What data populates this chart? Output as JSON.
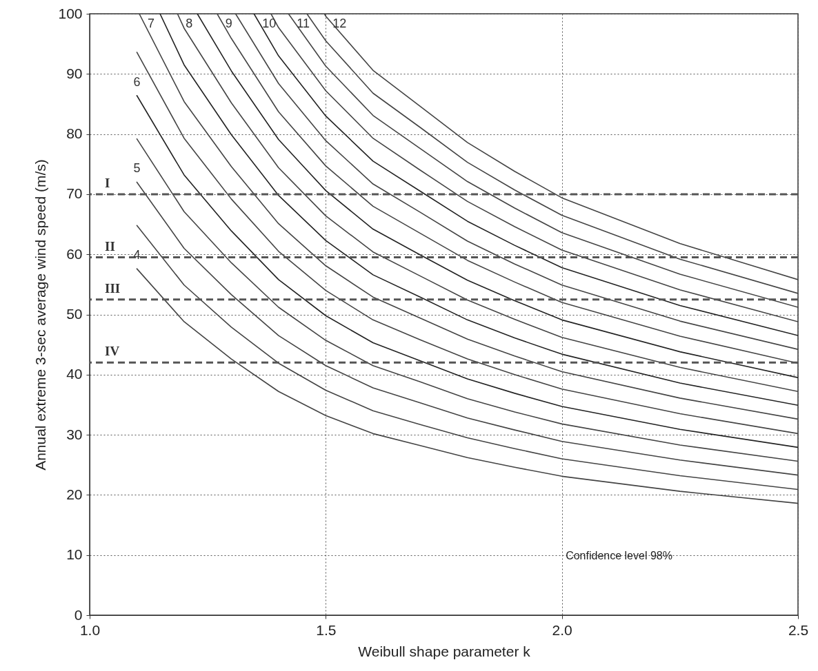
{
  "chart_data": {
    "type": "line",
    "xlabel": "Weibull shape parameter k",
    "ylabel": "Annual extreme 3-sec average wind speed  (m/s)",
    "x": [
      1.1,
      1.2,
      1.3,
      1.4,
      1.5,
      1.6,
      1.7,
      1.8,
      1.9,
      2.0,
      2.25,
      2.5
    ],
    "series": [
      {
        "name": "4",
        "color": "#444444",
        "values": [
          57.6,
          48.8,
          42.6,
          37.2,
          33.2,
          30.2,
          28.2,
          26.2,
          24.6,
          23.1,
          20.6,
          18.6
        ]
      },
      {
        "color": "#444444",
        "values": [
          64.8,
          54.9,
          47.9,
          41.9,
          37.4,
          34.0,
          31.7,
          29.5,
          27.7,
          26.0,
          23.2,
          20.9
        ]
      },
      {
        "name": "5",
        "color": "#444444",
        "values": [
          72,
          61,
          53.3,
          46.5,
          41.5,
          37.8,
          35.3,
          32.8,
          30.8,
          28.9,
          25.8,
          23.3
        ]
      },
      {
        "color": "#444444",
        "values": [
          79.2,
          67.1,
          58.6,
          51.2,
          45.7,
          41.5,
          38.8,
          36.0,
          33.8,
          31.8,
          28.3,
          25.6
        ]
      },
      {
        "name": "6",
        "color": "#222222",
        "values": [
          86.4,
          73.2,
          63.9,
          55.8,
          49.8,
          45.3,
          42.3,
          39.3,
          36.9,
          34.7,
          30.9,
          27.9
        ]
      },
      {
        "color": "#444444",
        "values": [
          93.6,
          79.3,
          69.2,
          60.5,
          54.0,
          49.1,
          45.8,
          42.6,
          40.0,
          37.6,
          33.5,
          30.2
        ]
      },
      {
        "name": "7",
        "color": "#444444",
        "x": [
          1.105,
          1.2,
          1.3,
          1.4,
          1.5,
          1.6,
          1.7,
          1.8,
          1.9,
          2.0,
          2.25,
          2.5
        ],
        "values": [
          100,
          85.4,
          74.6,
          65.1,
          58.1,
          52.9,
          49.4,
          45.9,
          43.1,
          40.5,
          36.1,
          32.6
        ]
      },
      {
        "color": "#222222",
        "x": [
          1.149,
          1.2,
          1.3,
          1.4,
          1.5,
          1.6,
          1.7,
          1.8,
          1.9,
          2.0,
          2.25,
          2.5
        ],
        "values": [
          100,
          91.5,
          79.9,
          69.8,
          62.3,
          56.6,
          52.9,
          49.1,
          46.1,
          43.4,
          38.6,
          34.9
        ]
      },
      {
        "name": "8",
        "color": "#444444",
        "x": [
          1.186,
          1.2,
          1.3,
          1.4,
          1.5,
          1.6,
          1.7,
          1.8,
          1.9,
          2.0,
          2.25,
          2.5
        ],
        "values": [
          100,
          97.6,
          85.2,
          74.4,
          66.4,
          60.4,
          56.4,
          52.4,
          49.2,
          46.2,
          41.2,
          37.2
        ]
      },
      {
        "color": "#222222",
        "x": [
          1.228,
          1.3,
          1.4,
          1.5,
          1.6,
          1.7,
          1.8,
          1.9,
          2.0,
          2.25,
          2.5
        ],
        "values": [
          100,
          90.5,
          79.1,
          70.6,
          64.2,
          59.9,
          55.7,
          52.3,
          49.1,
          43.8,
          39.5
        ]
      },
      {
        "name": "9",
        "color": "#444444",
        "x": [
          1.27,
          1.3,
          1.4,
          1.5,
          1.6,
          1.7,
          1.8,
          1.9,
          2.0,
          2.25,
          2.5
        ],
        "values": [
          100,
          95.9,
          83.7,
          74.7,
          68.0,
          63.5,
          59.0,
          55.4,
          52.0,
          46.4,
          41.9
        ]
      },
      {
        "color": "#444444",
        "x": [
          1.309,
          1.4,
          1.5,
          1.6,
          1.7,
          1.8,
          1.9,
          2.0,
          2.25,
          2.5
        ],
        "values": [
          100,
          88.4,
          78.9,
          71.7,
          67.0,
          62.2,
          58.4,
          54.9,
          48.9,
          44.2
        ]
      },
      {
        "name": "10",
        "color": "#222222",
        "x": [
          1.348,
          1.4,
          1.5,
          1.6,
          1.7,
          1.8,
          1.9,
          2.0,
          2.25,
          2.5
        ],
        "values": [
          100,
          93,
          83,
          75.5,
          70.5,
          65.5,
          61.5,
          57.8,
          51.5,
          46.5
        ]
      },
      {
        "color": "#444444",
        "x": [
          1.384,
          1.4,
          1.5,
          1.6,
          1.7,
          1.8,
          1.9,
          2.0,
          2.25,
          2.5
        ],
        "values": [
          100,
          97.7,
          87.2,
          79.3,
          74.0,
          68.8,
          64.6,
          60.7,
          54.1,
          48.8
        ]
      },
      {
        "name": "11",
        "color": "#444444",
        "x": [
          1.421,
          1.5,
          1.6,
          1.7,
          1.8,
          1.9,
          2.0,
          2.25,
          2.5
        ],
        "values": [
          100,
          91.3,
          83.1,
          77.6,
          72.1,
          67.7,
          63.6,
          56.7,
          51.2
        ]
      },
      {
        "color": "#444444",
        "x": [
          1.46,
          1.5,
          1.6,
          1.7,
          1.8,
          1.9,
          2.0,
          2.25,
          2.5
        ],
        "values": [
          100,
          95.5,
          86.8,
          81.1,
          75.3,
          70.7,
          66.5,
          59.2,
          53.5
        ]
      },
      {
        "name": "12",
        "color": "#444444",
        "x": [
          1.497,
          1.5,
          1.6,
          1.7,
          1.8,
          1.9,
          2.0,
          2.25,
          2.5
        ],
        "values": [
          100,
          99.6,
          90.6,
          84.6,
          78.6,
          73.8,
          69.4,
          61.8,
          55.8
        ]
      }
    ],
    "xlim": [
      1.0,
      2.5
    ],
    "xticks": [
      {
        "value": 1.0,
        "label": "1.0"
      },
      1.5,
      {
        "value": 2.0,
        "label": "2.0"
      },
      2.5
    ],
    "ylim": [
      0,
      100
    ],
    "yticks": [
      0,
      10,
      20,
      30,
      40,
      50,
      60,
      70,
      80,
      90,
      100
    ],
    "ref_lines": [
      {
        "axis": "y",
        "value": 70,
        "label": "I",
        "color": "#555555",
        "line_style": "dashed"
      },
      {
        "axis": "y",
        "value": 59.5,
        "label": "II",
        "color": "#555555",
        "line_style": "dashed"
      },
      {
        "axis": "y",
        "value": 52.5,
        "label": "III",
        "color": "#555555",
        "line_style": "dashed"
      },
      {
        "axis": "y",
        "value": 42,
        "label": "IV",
        "color": "#555555",
        "line_style": "dashed"
      }
    ],
    "annotations": [
      "Confidence level 98%"
    ],
    "grid": true,
    "line_style": "solid",
    "marker": "none"
  }
}
